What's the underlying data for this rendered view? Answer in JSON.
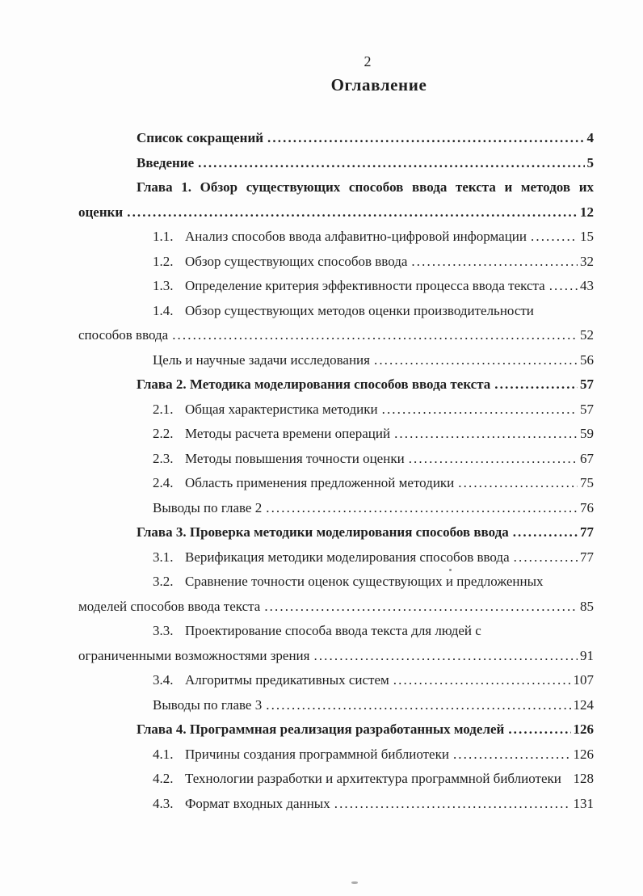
{
  "page": {
    "number": "2",
    "heading": "Оглавление"
  },
  "colors": {
    "text": "#1e1e1e",
    "background": "#fdfdfd"
  },
  "toc": {
    "entries": [
      {
        "text": "Список сокращений",
        "page": "4",
        "bold": true,
        "indent": "chapter"
      },
      {
        "text": "Введение",
        "page": "5",
        "bold": true,
        "indent": "chapter"
      },
      {
        "text": "Глава 1. Обзор существующих способов ввода текста и методов их",
        "text2": "оценки",
        "page": "12",
        "bold": true,
        "indent": "chapter",
        "justify": true
      },
      {
        "num": "1.1.",
        "text": "Анализ способов ввода алфавитно-цифровой информации",
        "page": "15",
        "indent": "sub"
      },
      {
        "num": "1.2.",
        "text": "Обзор существующих способов ввода",
        "page": "32",
        "indent": "sub"
      },
      {
        "num": "1.3.",
        "text": "Определение критерия эффективности процесса ввода текста",
        "page": "43",
        "indent": "sub"
      },
      {
        "num": "1.4.",
        "text": "Обзор существующих методов оценки производительности",
        "text2": "способов ввода",
        "page": "52",
        "indent": "sub"
      },
      {
        "text": "Цель и научные задачи исследования",
        "page": "56",
        "indent": "sub"
      },
      {
        "text": "Глава 2. Методика моделирования способов ввода текста",
        "page": "57",
        "bold": true,
        "indent": "chapter"
      },
      {
        "num": "2.1.",
        "text": "Общая характеристика методики",
        "page": "57",
        "indent": "sub"
      },
      {
        "num": "2.2.",
        "text": "Методы расчета времени операций",
        "page": "59",
        "indent": "sub"
      },
      {
        "num": "2.3.",
        "text": "Методы повышения точности оценки",
        "page": "67",
        "indent": "sub"
      },
      {
        "num": "2.4.",
        "text": "Область применения предложенной методики",
        "page": "75",
        "indent": "sub"
      },
      {
        "text": "Выводы по главе 2",
        "page": "76",
        "indent": "sub"
      },
      {
        "text": "Глава 3. Проверка методики моделирования способов ввода",
        "page": "77",
        "bold": true,
        "indent": "chapter"
      },
      {
        "num": "3.1.",
        "text": "Верификация методики моделирования способов ввода",
        "page": "77",
        "indent": "sub"
      },
      {
        "num": "3.2.",
        "text": "Сравнение точности оценок существующих и предложенных",
        "text2": "моделей способов ввода текста",
        "page": "85",
        "indent": "sub"
      },
      {
        "num": "3.3.",
        "text": "Проектирование способа ввода текста для людей с",
        "text2": "ограниченными возможностями зрения",
        "page": "91",
        "indent": "sub"
      },
      {
        "num": "3.4.",
        "text": "Алгоритмы предикативных систем",
        "page": "107",
        "indent": "sub"
      },
      {
        "text": "Выводы по главе 3",
        "page": "124",
        "indent": "sub"
      },
      {
        "text": "Глава 4. Программная реализация разработанных моделей",
        "page": "126",
        "bold": true,
        "indent": "chapter"
      },
      {
        "num": "4.1.",
        "text": "Причины создания программной библиотеки",
        "page": "126",
        "indent": "sub"
      },
      {
        "num": "4.2.",
        "text": "Технологии разработки и архитектура программной библиотеки",
        "page": "128",
        "indent": "sub",
        "nodots": true
      },
      {
        "num": "4.3.",
        "text": "Формат входных данных",
        "page": "131",
        "indent": "sub"
      }
    ]
  }
}
